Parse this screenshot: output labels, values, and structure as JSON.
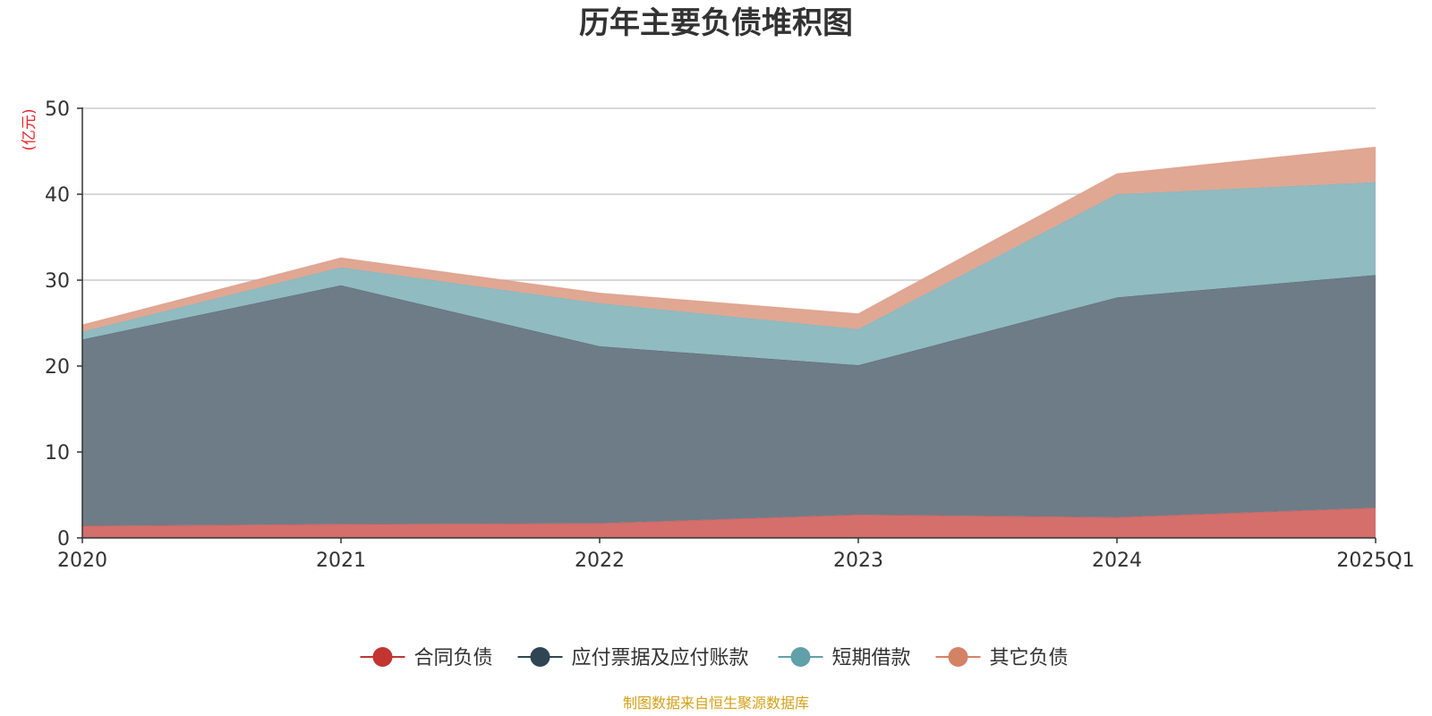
{
  "chart_data": {
    "type": "area",
    "stacked": true,
    "title": "历年主要负债堆积图",
    "unit_label": "(亿元)",
    "categories": [
      "2020",
      "2021",
      "2022",
      "2023",
      "2024",
      "2025Q1"
    ],
    "ylim": [
      0,
      50
    ],
    "yticks": [
      "0",
      "10",
      "20",
      "30",
      "40",
      "50"
    ],
    "grid": true,
    "legend_position": "bottom",
    "series": [
      {
        "name": "合同负债",
        "color": "#c23531",
        "fill": "#d46f6c",
        "values": [
          1.4,
          1.6,
          1.7,
          2.7,
          2.4,
          3.5
        ]
      },
      {
        "name": "应付票据及应付账款",
        "color": "#2f4554",
        "fill": "#6e7c87",
        "values": [
          21.7,
          27.8,
          20.6,
          17.4,
          25.6,
          27.1
        ]
      },
      {
        "name": "短期借款",
        "color": "#61a0a8",
        "fill": "#90bbc1",
        "values": [
          0.9,
          2.1,
          5.0,
          4.2,
          12.0,
          10.8
        ]
      },
      {
        "name": "其它负债",
        "color": "#d48265",
        "fill": "#e0a793",
        "values": [
          0.8,
          1.1,
          1.2,
          1.8,
          2.4,
          4.1
        ]
      }
    ],
    "source": "制图数据来自恒生聚源数据库"
  }
}
